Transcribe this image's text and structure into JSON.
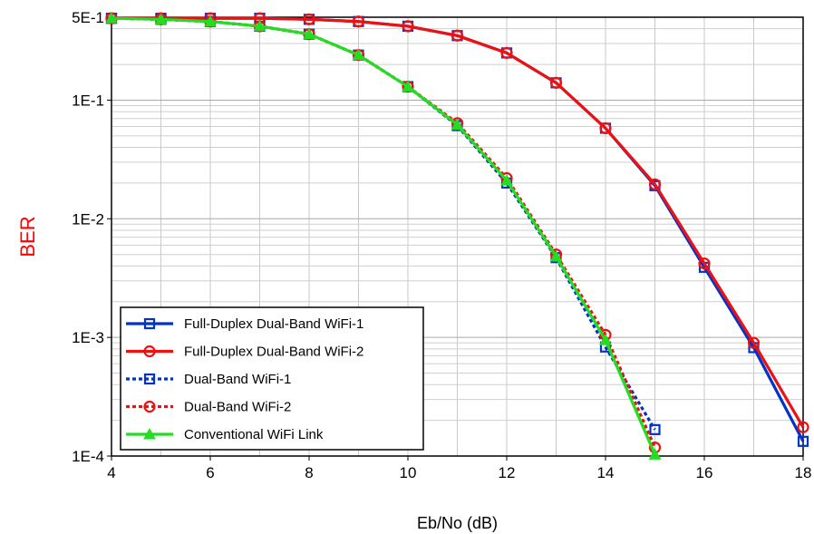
{
  "chart_data": {
    "type": "line",
    "xlabel": "Eb/No (dB)",
    "ylabel": "BER",
    "xlim": [
      4,
      18
    ],
    "ylim": [
      0.0001,
      0.5
    ],
    "yscale": "log",
    "grid": true,
    "legend_position": "bottom-left",
    "x_ticks": [
      4,
      6,
      8,
      10,
      12,
      14,
      16,
      18
    ],
    "x_tick_labels": [
      "4",
      "6",
      "8",
      "10",
      "12",
      "14",
      "16",
      "18"
    ],
    "y_ticks": [
      0.5,
      0.1,
      0.01,
      0.001,
      0.0001
    ],
    "y_tick_labels": [
      "5E-1",
      "1E-1",
      "1E-2",
      "1E-3",
      "1E-4"
    ],
    "series": [
      {
        "name": "Full-Duplex Dual-Band WiFi-1",
        "color": "#0033cc",
        "dash": "solid",
        "marker": "square",
        "x": [
          4,
          5,
          6,
          7,
          8,
          9,
          10,
          11,
          12,
          13,
          14,
          15,
          16,
          17,
          18
        ],
        "y": [
          0.49,
          0.49,
          0.49,
          0.49,
          0.48,
          0.46,
          0.42,
          0.35,
          0.25,
          0.14,
          0.058,
          0.019,
          0.0039,
          0.00082,
          0.000133
        ]
      },
      {
        "name": "Full-Duplex Dual-Band WiFi-2",
        "color": "#ee1111",
        "dash": "solid",
        "marker": "circle",
        "x": [
          4,
          5,
          6,
          7,
          8,
          9,
          10,
          11,
          12,
          13,
          14,
          15,
          16,
          17,
          18
        ],
        "y": [
          0.49,
          0.49,
          0.49,
          0.49,
          0.48,
          0.46,
          0.42,
          0.35,
          0.25,
          0.14,
          0.058,
          0.0195,
          0.0042,
          0.0009,
          0.000175
        ]
      },
      {
        "name": "Dual-Band WiFi-1",
        "color": "#0033cc",
        "dash": "dotted",
        "marker": "square",
        "x": [
          4,
          5,
          6,
          7,
          8,
          9,
          10,
          11,
          12,
          13,
          14,
          15
        ],
        "y": [
          0.49,
          0.48,
          0.46,
          0.42,
          0.36,
          0.24,
          0.13,
          0.061,
          0.02,
          0.0047,
          0.00083,
          0.000167
        ]
      },
      {
        "name": "Dual-Band WiFi-2",
        "color": "#ee1111",
        "dash": "dotted",
        "marker": "circle",
        "x": [
          4,
          5,
          6,
          7,
          8,
          9,
          10,
          11,
          12,
          13,
          14,
          15
        ],
        "y": [
          0.49,
          0.48,
          0.46,
          0.42,
          0.36,
          0.24,
          0.13,
          0.064,
          0.022,
          0.005,
          0.00105,
          0.000118
        ]
      },
      {
        "name": "Conventional WiFi Link",
        "color": "#22dd22",
        "dash": "solid",
        "marker": "triangle",
        "x": [
          4,
          5,
          6,
          7,
          8,
          9,
          10,
          11,
          12,
          13,
          14,
          15
        ],
        "y": [
          0.49,
          0.48,
          0.46,
          0.42,
          0.36,
          0.24,
          0.13,
          0.062,
          0.021,
          0.0048,
          0.00095,
          0.000103
        ]
      }
    ]
  }
}
